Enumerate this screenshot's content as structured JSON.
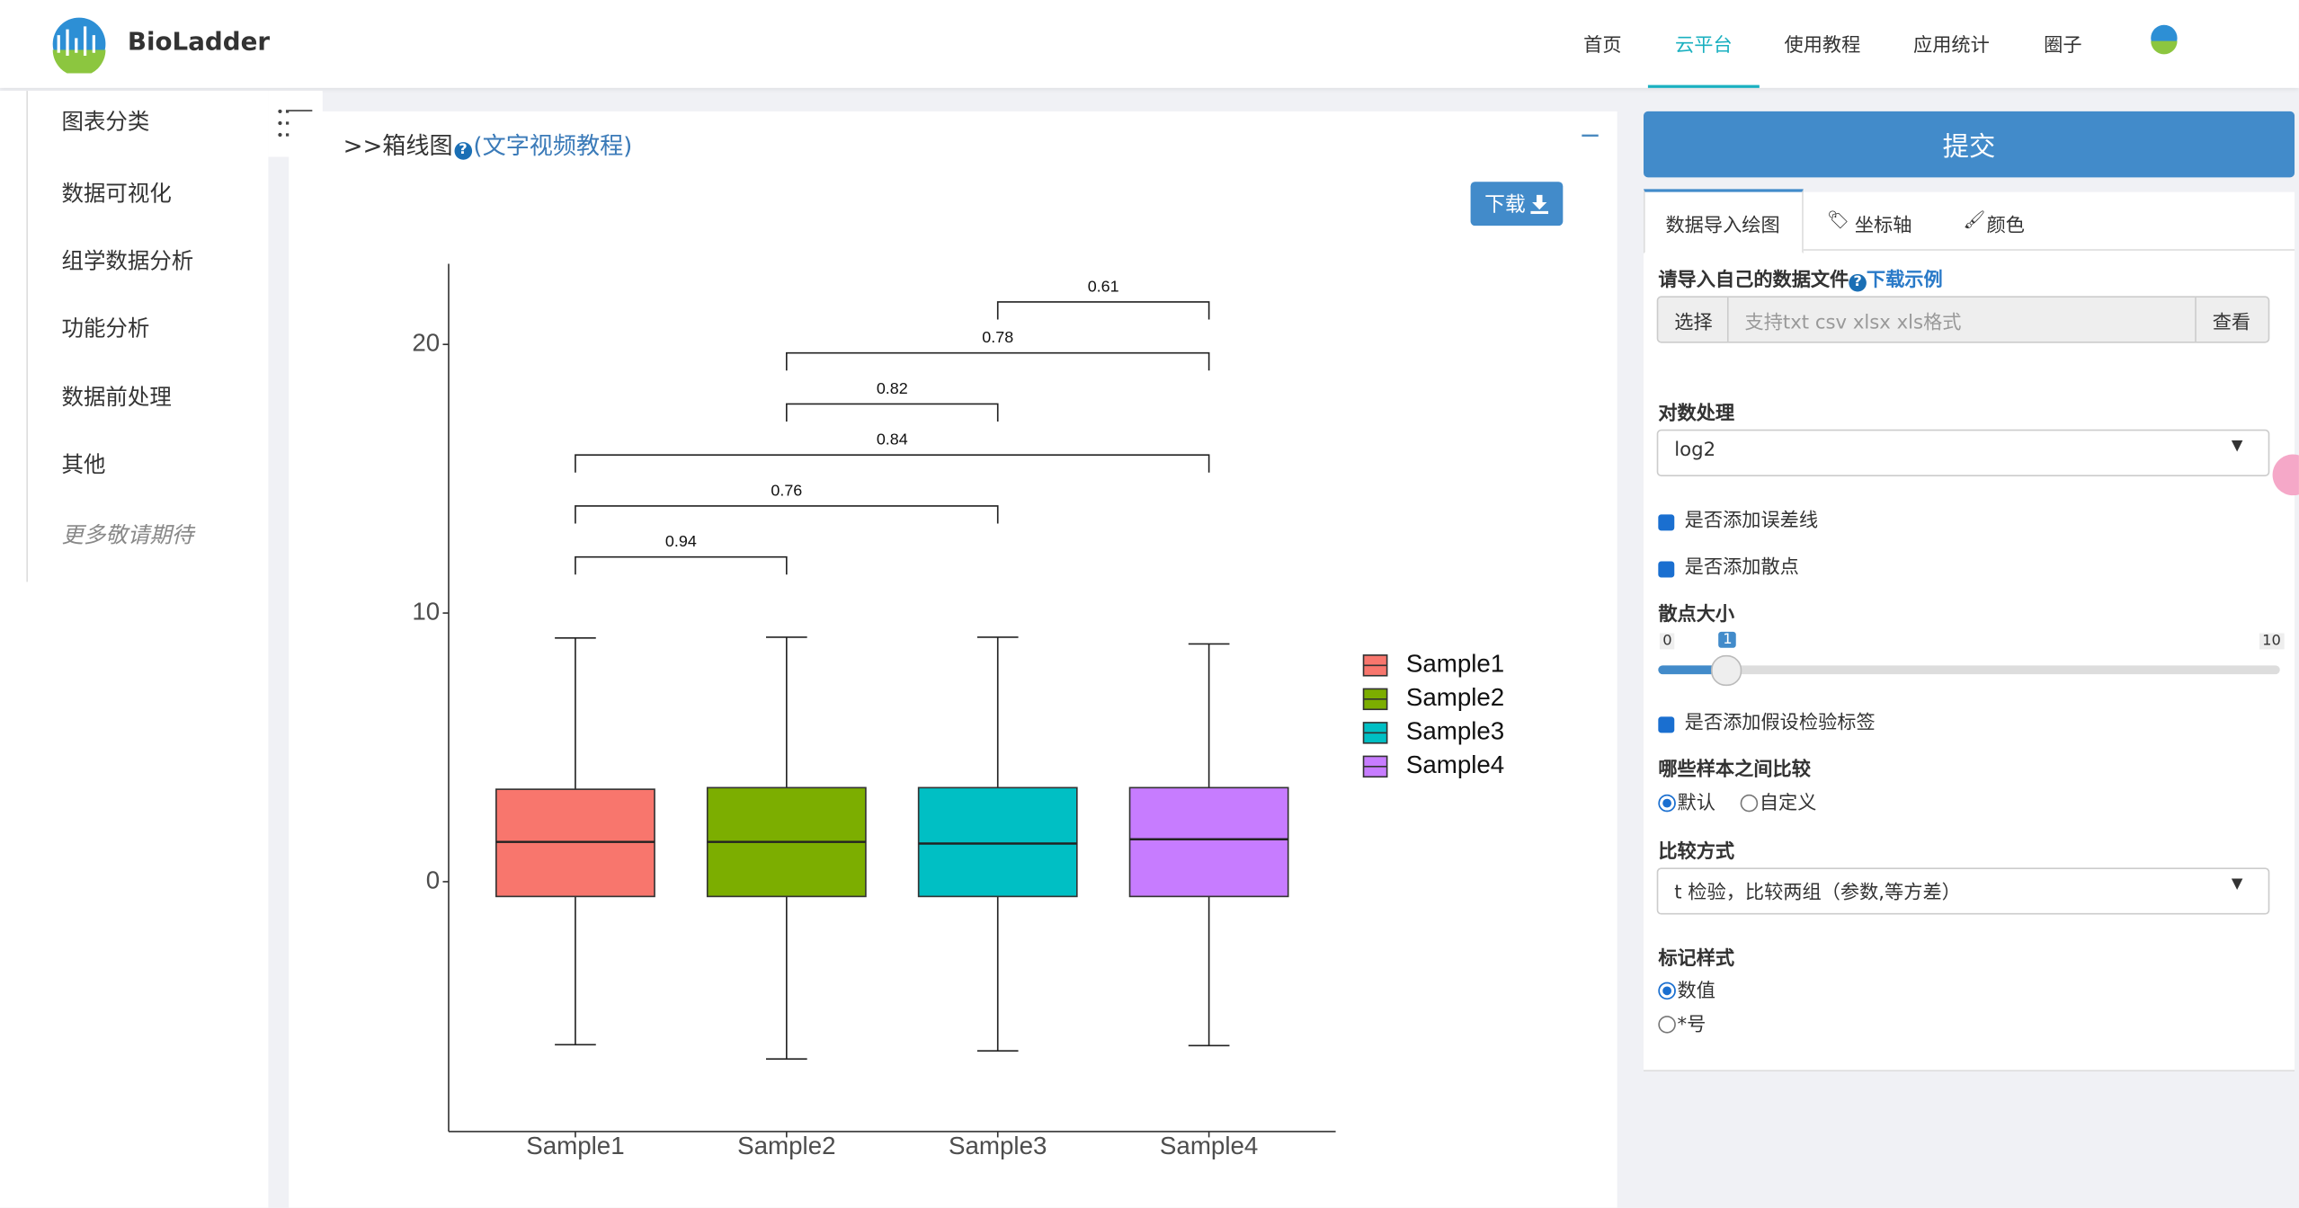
{
  "header": {
    "brand": "BioLadder",
    "nav": [
      "首页",
      "云平台",
      "使用教程",
      "应用统计",
      "圈子"
    ],
    "active_nav": 1
  },
  "sidebar": {
    "title": "图表分类",
    "items": [
      "数据可视化",
      "组学数据分析",
      "功能分析",
      "数据前处理",
      "其他"
    ],
    "more": "更多敬请期待"
  },
  "panel": {
    "title": ">>箱线图",
    "tutorial": "(文字视频教程)",
    "download": "下载"
  },
  "chart_data": {
    "type": "box",
    "categories": [
      "Sample1",
      "Sample2",
      "Sample3",
      "Sample4"
    ],
    "colors": [
      "#f8766d",
      "#7cae00",
      "#00bfc4",
      "#c77cff"
    ],
    "boxes": [
      {
        "min": -6.07,
        "q1": -0.55,
        "median": 1.48,
        "q3": 3.44,
        "max": 9.07
      },
      {
        "min": -6.6,
        "q1": -0.55,
        "median": 1.48,
        "q3": 3.5,
        "max": 9.1
      },
      {
        "min": -6.3,
        "q1": -0.55,
        "median": 1.42,
        "q3": 3.5,
        "max": 9.1
      },
      {
        "min": -6.1,
        "q1": -0.55,
        "median": 1.58,
        "q3": 3.5,
        "max": 8.85
      }
    ],
    "comparisons": [
      {
        "pair": [
          "Sample1",
          "Sample2"
        ],
        "p": 0.94
      },
      {
        "pair": [
          "Sample1",
          "Sample3"
        ],
        "p": 0.76
      },
      {
        "pair": [
          "Sample1",
          "Sample4"
        ],
        "p": 0.84
      },
      {
        "pair": [
          "Sample2",
          "Sample3"
        ],
        "p": 0.82
      },
      {
        "pair": [
          "Sample2",
          "Sample4"
        ],
        "p": 0.78
      },
      {
        "pair": [
          "Sample3",
          "Sample4"
        ],
        "p": 0.61
      }
    ],
    "ylim": [
      -9.3,
      23
    ],
    "yticks": [
      0,
      10,
      20
    ],
    "legend": "right"
  },
  "form": {
    "submit": "提交",
    "tabs": [
      "数据导入绘图",
      "坐标轴",
      "颜色"
    ],
    "file": {
      "label": "请导入自己的数据文件",
      "example": "下载示例",
      "choose": "选择",
      "placeholder": "支持txt csv xlsx xls格式",
      "view": "查看"
    },
    "log": {
      "label": "对数处理",
      "value": "log2"
    },
    "checks": [
      {
        "label": "是否添加误差线",
        "checked": true
      },
      {
        "label": "是否添加散点",
        "checked": true
      }
    ],
    "point_size": {
      "label": "散点大小",
      "min": 0,
      "max": 10,
      "value": 1
    },
    "check_test": {
      "label": "是否添加假设检验标签",
      "checked": true
    },
    "compare": {
      "label": "哪些样本之间比较",
      "options": [
        "默认",
        "自定义"
      ],
      "selected": 0
    },
    "method": {
      "label": "比较方式",
      "value": "t 检验，比较两组（参数,等方差）"
    },
    "marker": {
      "label": "标记样式",
      "options": [
        "数值",
        "*号"
      ],
      "selected": 0
    }
  }
}
